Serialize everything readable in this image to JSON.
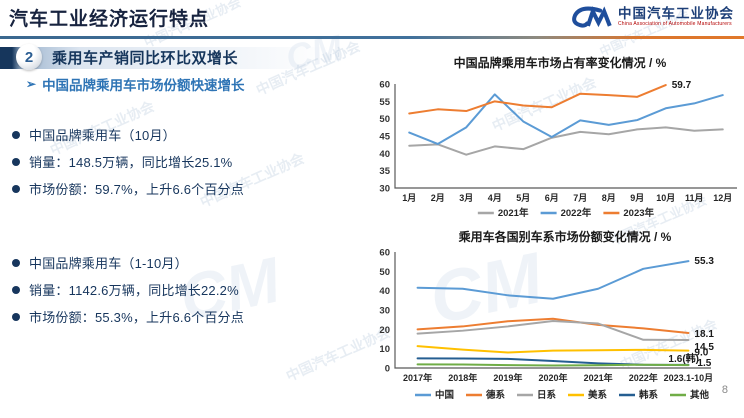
{
  "header": {
    "title": "汽车工业经济运行特点",
    "logo_text": "中国汽车工业协会",
    "logo_subtext": "China Association of Automobile Manufacturers",
    "logo_mark": "CM"
  },
  "section": {
    "number": "2",
    "title": "乘用车产销同比环比双增长",
    "subtitle_marker": "➢",
    "subtitle": "中国品牌乘用车市场份额快速增长"
  },
  "bullets_group1": {
    "items": [
      "中国品牌乘用车（10月）",
      "销量：148.5万辆，同比增长25.1%",
      "市场份额：59.7%，上升6.6个百分点"
    ]
  },
  "bullets_group2": {
    "items": [
      "中国品牌乘用车（1-10月）",
      "销量：1142.6万辆，同比增长22.2%",
      "市场份额：55.3%，上升6.6个百分点"
    ]
  },
  "watermark": {
    "text": "中国汽车工业协会",
    "mark": "CM"
  },
  "page_number": "8",
  "chart_data": [
    {
      "type": "line",
      "title": "中国品牌乘用车市场占有率变化情况 / %",
      "categories": [
        "1月",
        "2月",
        "3月",
        "4月",
        "5月",
        "6月",
        "7月",
        "8月",
        "9月",
        "10月",
        "11月",
        "12月"
      ],
      "series": [
        {
          "name": "2021年",
          "color": "#a6a6a6",
          "values": [
            42.2,
            42.6,
            39.6,
            42.0,
            41.2,
            44.5,
            46.2,
            45.5,
            46.9,
            47.5,
            46.5,
            46.9
          ]
        },
        {
          "name": "2022年",
          "color": "#5b9bd5",
          "values": [
            46.0,
            42.7,
            47.5,
            57.0,
            49.2,
            44.7,
            49.5,
            48.2,
            49.6,
            53.0,
            54.4,
            56.8
          ]
        },
        {
          "name": "2023年",
          "color": "#ed7d31",
          "values": [
            51.5,
            52.7,
            52.2,
            55.0,
            53.8,
            53.3,
            57.2,
            56.8,
            56.3,
            59.7
          ],
          "end_label": "59.7"
        }
      ],
      "ylim": [
        30,
        60
      ],
      "ytick_step": 5,
      "grid": false,
      "legend_position": "bottom"
    },
    {
      "type": "line",
      "title": "乘用车各国别车系市场份额变化情况 / %",
      "categories": [
        "2017年",
        "2018年",
        "2019年",
        "2020年",
        "2021年",
        "2022年",
        "2023.1-10月"
      ],
      "series": [
        {
          "name": "中国",
          "color": "#5b9bd5",
          "values": [
            41.5,
            41.0,
            37.6,
            35.8,
            41.0,
            51.3,
            55.3
          ],
          "end_label": "55.3"
        },
        {
          "name": "德系",
          "color": "#ed7d31",
          "values": [
            20.0,
            21.5,
            24.2,
            25.5,
            22.3,
            20.5,
            18.1
          ],
          "end_label": "18.1"
        },
        {
          "name": "日系",
          "color": "#a6a6a6",
          "values": [
            17.8,
            19.3,
            21.5,
            24.3,
            23.0,
            14.6,
            14.5
          ],
          "end_label": "14.5"
        },
        {
          "name": "美系",
          "color": "#ffc000",
          "values": [
            11.3,
            9.5,
            8.0,
            9.0,
            9.2,
            9.4,
            9.0
          ],
          "end_label": "9.0"
        },
        {
          "name": "韩系",
          "color": "#255e91",
          "values": [
            5.0,
            4.9,
            4.7,
            3.6,
            2.4,
            1.7,
            1.6
          ],
          "end_label": "1.6(韩)"
        },
        {
          "name": "其他",
          "color": "#70ad47",
          "values": [
            1.9,
            1.8,
            1.5,
            1.3,
            1.4,
            1.7,
            1.5
          ],
          "end_label": "1.5"
        }
      ],
      "ylim": [
        0,
        60
      ],
      "ytick_step": 10,
      "grid": false,
      "legend_position": "bottom"
    }
  ]
}
